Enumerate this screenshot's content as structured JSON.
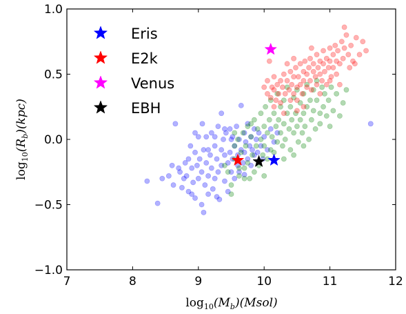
{
  "chart_data": {
    "type": "scatter",
    "xlabel_parts": {
      "func": "log",
      "sub": "10",
      "paren": "(M",
      "var_sub": "b",
      "unit": ")(Msol)"
    },
    "ylabel_parts": {
      "func": "log",
      "sub": "10",
      "paren": "(R",
      "var_sub": "b",
      "unit": ")(kpc)"
    },
    "xlim": [
      7,
      12
    ],
    "ylim": [
      -1.0,
      1.0
    ],
    "x_ticks": [
      7,
      8,
      9,
      10,
      11,
      12
    ],
    "x_tick_labels": [
      "7",
      "8",
      "9",
      "10",
      "11",
      "12"
    ],
    "y_ticks": [
      -1.0,
      -0.5,
      0.0,
      0.5,
      1.0
    ],
    "y_tick_labels": [
      "−1.0",
      "−0.5",
      "0.0",
      "0.5",
      "1.0"
    ],
    "grid": false,
    "legend_position": "top-left",
    "scatter_series": [
      {
        "color": "#0000ff",
        "alpha": 0.3,
        "points": [
          [
            8.22,
            -0.32
          ],
          [
            8.38,
            -0.49
          ],
          [
            8.45,
            -0.3
          ],
          [
            8.55,
            -0.28
          ],
          [
            8.6,
            -0.2
          ],
          [
            8.62,
            -0.35
          ],
          [
            8.65,
            0.12
          ],
          [
            8.7,
            -0.22
          ],
          [
            8.72,
            -0.25
          ],
          [
            8.75,
            -0.37
          ],
          [
            8.78,
            -0.3
          ],
          [
            8.8,
            -0.18
          ],
          [
            8.82,
            -0.28
          ],
          [
            8.85,
            -0.15
          ],
          [
            8.85,
            -0.4
          ],
          [
            8.88,
            -0.05
          ],
          [
            8.9,
            -0.22
          ],
          [
            8.92,
            -0.33
          ],
          [
            8.95,
            -0.1
          ],
          [
            8.95,
            -0.45
          ],
          [
            8.98,
            -0.2
          ],
          [
            9.0,
            0.02
          ],
          [
            9.0,
            -0.3
          ],
          [
            9.02,
            -0.15
          ],
          [
            9.05,
            -0.25
          ],
          [
            9.05,
            -0.5
          ],
          [
            9.08,
            -0.08
          ],
          [
            9.1,
            -0.35
          ],
          [
            9.12,
            0.02
          ],
          [
            9.12,
            -0.18
          ],
          [
            9.15,
            -0.28
          ],
          [
            9.15,
            -0.42
          ],
          [
            9.18,
            -0.12
          ],
          [
            9.2,
            0.05
          ],
          [
            9.2,
            -0.22
          ],
          [
            9.22,
            -0.38
          ],
          [
            9.25,
            -0.05
          ],
          [
            9.25,
            -0.3
          ],
          [
            9.28,
            -0.15
          ],
          [
            9.3,
            0.1
          ],
          [
            9.3,
            -0.25
          ],
          [
            9.32,
            -0.46
          ],
          [
            9.35,
            -0.08
          ],
          [
            9.35,
            -0.2
          ],
          [
            9.38,
            0.0
          ],
          [
            9.4,
            -0.12
          ],
          [
            9.4,
            -0.32
          ],
          [
            9.42,
            0.05
          ],
          [
            9.45,
            -0.18
          ],
          [
            9.45,
            -0.4
          ],
          [
            9.48,
            0.08
          ],
          [
            9.48,
            -0.1
          ],
          [
            9.5,
            -0.25
          ],
          [
            9.52,
            0.02
          ],
          [
            9.52,
            -0.15
          ],
          [
            9.55,
            -0.05
          ],
          [
            9.55,
            -0.3
          ],
          [
            9.58,
            0.1
          ],
          [
            9.6,
            -0.12
          ],
          [
            9.6,
            -0.2
          ],
          [
            9.62,
            0.0
          ],
          [
            9.65,
            -0.08
          ],
          [
            9.65,
            0.26
          ],
          [
            9.68,
            -0.18
          ],
          [
            9.7,
            0.05
          ],
          [
            9.7,
            -0.1
          ],
          [
            9.72,
            -0.02
          ],
          [
            9.75,
            -0.15
          ],
          [
            9.75,
            0.12
          ],
          [
            9.78,
            -0.05
          ],
          [
            9.8,
            0.02
          ],
          [
            9.8,
            -0.2
          ],
          [
            9.82,
            -0.08
          ],
          [
            9.85,
            0.08
          ],
          [
            9.85,
            -0.12
          ],
          [
            9.88,
            0.0
          ],
          [
            9.9,
            -0.1
          ],
          [
            9.92,
            0.05
          ],
          [
            9.95,
            -0.05
          ],
          [
            9.98,
            -0.15
          ],
          [
            10.0,
            0.02
          ],
          [
            10.05,
            -0.08
          ],
          [
            10.1,
            0.08
          ],
          [
            10.15,
            -0.02
          ],
          [
            10.2,
            0.05
          ],
          [
            9.06,
            0.12
          ],
          [
            8.95,
            0.05
          ],
          [
            9.15,
            -0.08
          ],
          [
            9.35,
            0.2
          ],
          [
            9.5,
            0.0
          ],
          [
            9.62,
            -0.25
          ],
          [
            9.28,
            -0.44
          ],
          [
            9.08,
            -0.56
          ],
          [
            9.7,
            -0.27
          ],
          [
            11.62,
            0.12
          ],
          [
            9.4,
            0.08
          ],
          [
            8.9,
            -0.42
          ],
          [
            9.25,
            0.02
          ]
        ]
      },
      {
        "color": "#008000",
        "alpha": 0.3,
        "points": [
          [
            9.4,
            -0.2
          ],
          [
            9.45,
            -0.25
          ],
          [
            9.5,
            -0.35
          ],
          [
            9.55,
            -0.05
          ],
          [
            9.55,
            -0.15
          ],
          [
            9.6,
            0.0
          ],
          [
            9.62,
            -0.28
          ],
          [
            9.65,
            -0.1
          ],
          [
            9.68,
            0.05
          ],
          [
            9.7,
            -0.22
          ],
          [
            9.72,
            -0.05
          ],
          [
            9.75,
            0.1
          ],
          [
            9.75,
            -0.18
          ],
          [
            9.78,
            -0.3
          ],
          [
            9.8,
            0.02
          ],
          [
            9.82,
            -0.12
          ],
          [
            9.85,
            0.15
          ],
          [
            9.85,
            -0.25
          ],
          [
            9.88,
            -0.05
          ],
          [
            9.9,
            0.08
          ],
          [
            9.92,
            -0.2
          ],
          [
            9.95,
            0.0
          ],
          [
            9.95,
            0.2
          ],
          [
            9.98,
            -0.12
          ],
          [
            10.0,
            0.1
          ],
          [
            10.0,
            -0.05
          ],
          [
            10.02,
            0.25
          ],
          [
            10.05,
            -0.15
          ],
          [
            10.05,
            0.05
          ],
          [
            10.08,
            0.15
          ],
          [
            10.1,
            -0.08
          ],
          [
            10.1,
            0.3
          ],
          [
            10.12,
            0.02
          ],
          [
            10.15,
            0.2
          ],
          [
            10.15,
            -0.1
          ],
          [
            10.18,
            0.1
          ],
          [
            10.2,
            0.35
          ],
          [
            10.2,
            -0.02
          ],
          [
            10.22,
            0.15
          ],
          [
            10.25,
            0.05
          ],
          [
            10.25,
            0.25
          ],
          [
            10.28,
            -0.05
          ],
          [
            10.3,
            0.12
          ],
          [
            10.3,
            0.3
          ],
          [
            10.32,
            0.0
          ],
          [
            10.35,
            0.2
          ],
          [
            10.35,
            0.4
          ],
          [
            10.38,
            0.08
          ],
          [
            10.4,
            -0.08
          ],
          [
            10.4,
            0.25
          ],
          [
            10.42,
            0.15
          ],
          [
            10.45,
            0.05
          ],
          [
            10.45,
            0.32
          ],
          [
            10.48,
            0.2
          ],
          [
            10.5,
            0.1
          ],
          [
            10.5,
            0.38
          ],
          [
            10.52,
            -0.02
          ],
          [
            10.55,
            0.28
          ],
          [
            10.55,
            0.15
          ],
          [
            10.58,
            0.05
          ],
          [
            10.6,
            0.35
          ],
          [
            10.6,
            0.2
          ],
          [
            10.62,
            0.1
          ],
          [
            10.65,
            0.42
          ],
          [
            10.65,
            0.25
          ],
          [
            10.68,
            0.0
          ],
          [
            10.7,
            0.3
          ],
          [
            10.72,
            0.15
          ],
          [
            10.75,
            0.38
          ],
          [
            10.75,
            0.22
          ],
          [
            10.78,
            0.08
          ],
          [
            10.8,
            0.45
          ],
          [
            10.8,
            0.3
          ],
          [
            10.85,
            0.2
          ],
          [
            10.85,
            0.12
          ],
          [
            10.88,
            0.4
          ],
          [
            10.9,
            0.25
          ],
          [
            10.92,
            0.35
          ],
          [
            10.95,
            0.18
          ],
          [
            10.98,
            0.3
          ],
          [
            11.0,
            0.1
          ],
          [
            11.02,
            0.4
          ],
          [
            11.05,
            0.22
          ],
          [
            11.1,
            0.35
          ],
          [
            11.15,
            0.18
          ],
          [
            11.2,
            0.28
          ],
          [
            11.25,
            0.38
          ],
          [
            9.5,
            -0.42
          ],
          [
            9.62,
            -0.22
          ],
          [
            9.7,
            -0.3
          ],
          [
            10.0,
            -0.28
          ],
          [
            10.3,
            -0.15
          ],
          [
            10.6,
            -0.05
          ],
          [
            9.8,
            0.12
          ],
          [
            9.55,
            0.05
          ],
          [
            10.45,
            -0.12
          ]
        ]
      },
      {
        "color": "#ff0000",
        "alpha": 0.3,
        "points": [
          [
            10.0,
            0.4
          ],
          [
            10.05,
            0.35
          ],
          [
            10.05,
            0.45
          ],
          [
            10.1,
            0.32
          ],
          [
            10.12,
            0.4
          ],
          [
            10.15,
            0.38
          ],
          [
            10.15,
            0.48
          ],
          [
            10.18,
            0.3
          ],
          [
            10.2,
            0.42
          ],
          [
            10.22,
            0.35
          ],
          [
            10.25,
            0.45
          ],
          [
            10.25,
            0.28
          ],
          [
            10.28,
            0.4
          ],
          [
            10.3,
            0.5
          ],
          [
            10.32,
            0.35
          ],
          [
            10.35,
            0.45
          ],
          [
            10.38,
            0.38
          ],
          [
            10.4,
            0.52
          ],
          [
            10.4,
            0.3
          ],
          [
            10.42,
            0.42
          ],
          [
            10.45,
            0.48
          ],
          [
            10.45,
            0.35
          ],
          [
            10.48,
            0.55
          ],
          [
            10.5,
            0.4
          ],
          [
            10.5,
            0.3
          ],
          [
            10.52,
            0.48
          ],
          [
            10.55,
            0.58
          ],
          [
            10.55,
            0.42
          ],
          [
            10.58,
            0.35
          ],
          [
            10.6,
            0.52
          ],
          [
            10.6,
            0.45
          ],
          [
            10.62,
            0.6
          ],
          [
            10.65,
            0.4
          ],
          [
            10.65,
            0.5
          ],
          [
            10.68,
            0.55
          ],
          [
            10.7,
            0.45
          ],
          [
            10.7,
            0.62
          ],
          [
            10.72,
            0.38
          ],
          [
            10.75,
            0.52
          ],
          [
            10.75,
            0.58
          ],
          [
            10.78,
            0.48
          ],
          [
            10.8,
            0.65
          ],
          [
            10.8,
            0.42
          ],
          [
            10.82,
            0.55
          ],
          [
            10.85,
            0.6
          ],
          [
            10.85,
            0.5
          ],
          [
            10.88,
            0.45
          ],
          [
            10.9,
            0.68
          ],
          [
            10.9,
            0.58
          ],
          [
            10.92,
            0.52
          ],
          [
            10.95,
            0.62
          ],
          [
            10.95,
            0.42
          ],
          [
            10.98,
            0.55
          ],
          [
            11.0,
            0.7
          ],
          [
            11.0,
            0.6
          ],
          [
            11.02,
            0.48
          ],
          [
            11.05,
            0.65
          ],
          [
            11.05,
            0.55
          ],
          [
            11.08,
            0.72
          ],
          [
            11.1,
            0.6
          ],
          [
            11.1,
            0.5
          ],
          [
            11.12,
            0.68
          ],
          [
            11.15,
            0.58
          ],
          [
            11.18,
            0.75
          ],
          [
            11.2,
            0.62
          ],
          [
            11.22,
            0.7
          ],
          [
            11.25,
            0.8
          ],
          [
            11.28,
            0.65
          ],
          [
            11.3,
            0.55
          ],
          [
            11.32,
            0.72
          ],
          [
            11.35,
            0.6
          ],
          [
            11.22,
            0.86
          ],
          [
            11.4,
            0.78
          ],
          [
            11.45,
            0.65
          ],
          [
            11.5,
            0.75
          ],
          [
            11.55,
            0.68
          ],
          [
            10.08,
            0.6
          ],
          [
            10.35,
            0.58
          ],
          [
            10.15,
            0.25
          ],
          [
            10.6,
            0.25
          ],
          [
            10.85,
            0.35
          ],
          [
            11.0,
            0.45
          ],
          [
            10.3,
            0.2
          ],
          [
            10.5,
            0.22
          ],
          [
            11.38,
            0.58
          ],
          [
            10.72,
            0.7
          ],
          [
            10.45,
            0.62
          ],
          [
            11.15,
            0.42
          ]
        ]
      }
    ],
    "legend_series": [
      {
        "name": "Eris",
        "color": "#0000ff",
        "x": 10.15,
        "y": -0.16
      },
      {
        "name": "E2k",
        "color": "#ff0000",
        "x": 9.6,
        "y": -0.16
      },
      {
        "name": "Venus",
        "color": "#ff00ff",
        "x": 10.1,
        "y": 0.69
      },
      {
        "name": "EBH",
        "color": "#000000",
        "x": 9.92,
        "y": -0.17
      }
    ]
  }
}
